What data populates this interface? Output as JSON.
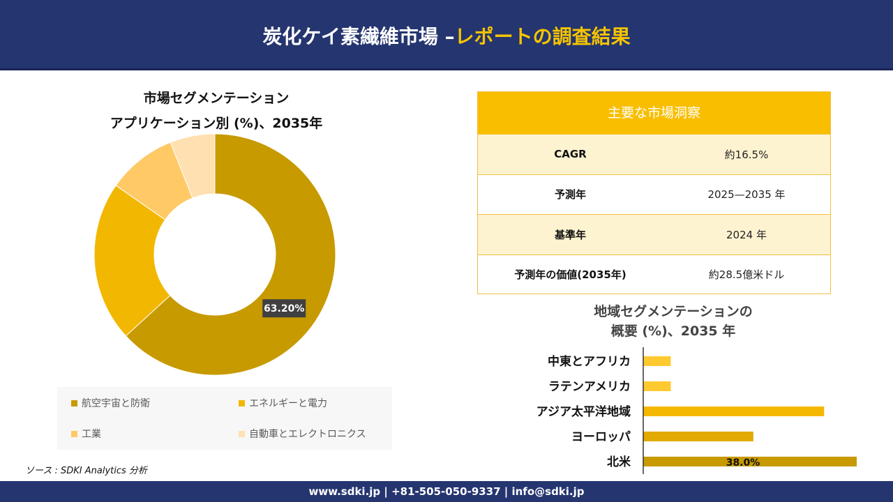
{
  "header": {
    "title_part1": "炭化ケイ素繊維市場 –",
    "title_part2": "レポートの調査結果"
  },
  "chart_data": [
    {
      "type": "pie",
      "title_line1": "市場セグメンテーション",
      "title_line2": "アプリケーション別 (%)、2035年",
      "categories": [
        "航空宇宙と防衛",
        "エネルギーと電力",
        "工業",
        "自動車とエレクトロニクス"
      ],
      "values": [
        63.2,
        21.5,
        9.3,
        6.0
      ],
      "colors": [
        "#c79a00",
        "#f2b700",
        "#ffc966",
        "#ffe0b0"
      ],
      "data_labels": [
        "63.20%",
        "",
        "",
        ""
      ],
      "donut": true,
      "legend_position": "bottom"
    },
    {
      "type": "bar",
      "orientation": "horizontal",
      "title_line1": "地域セグメンテーションの",
      "title_line2": "概要 (%)、2035 年",
      "categories": [
        "中東とアフリカ",
        "ラテンアメリカ",
        "アジア太平洋地域",
        "ヨーロッパ",
        "北米"
      ],
      "values": [
        4.9,
        4.9,
        32.2,
        19.6,
        38.0
      ],
      "colors": [
        "#ffc930",
        "#ffc930",
        "#f5b800",
        "#e2a900",
        "#c79a00"
      ],
      "data_labels": [
        "",
        "",
        "",
        "",
        "38.0%"
      ],
      "xlim": [
        0,
        38
      ]
    }
  ],
  "legend": {
    "items": [
      {
        "label": "航空宇宙と防衛",
        "color": "#c79a00"
      },
      {
        "label": "エネルギーと電力",
        "color": "#f2b700"
      },
      {
        "label": "工業",
        "color": "#ffc966"
      },
      {
        "label": "自動車とエレクトロニクス",
        "color": "#ffe0b0"
      }
    ]
  },
  "insights": {
    "title": "主要な市場洞察",
    "rows": [
      {
        "key": "CAGR",
        "value": "約16.5%"
      },
      {
        "key": "予測年",
        "value": "2025—2035 年"
      },
      {
        "key": "基準年",
        "value": "2024 年"
      },
      {
        "key": "予測年の価値(2035年)",
        "value": "約28.5億米ドル"
      }
    ]
  },
  "source": "ソース : SDKI Analytics 分析",
  "footer": "www.sdki.jp | +81-505-050-9337 | info@sdki.jp"
}
